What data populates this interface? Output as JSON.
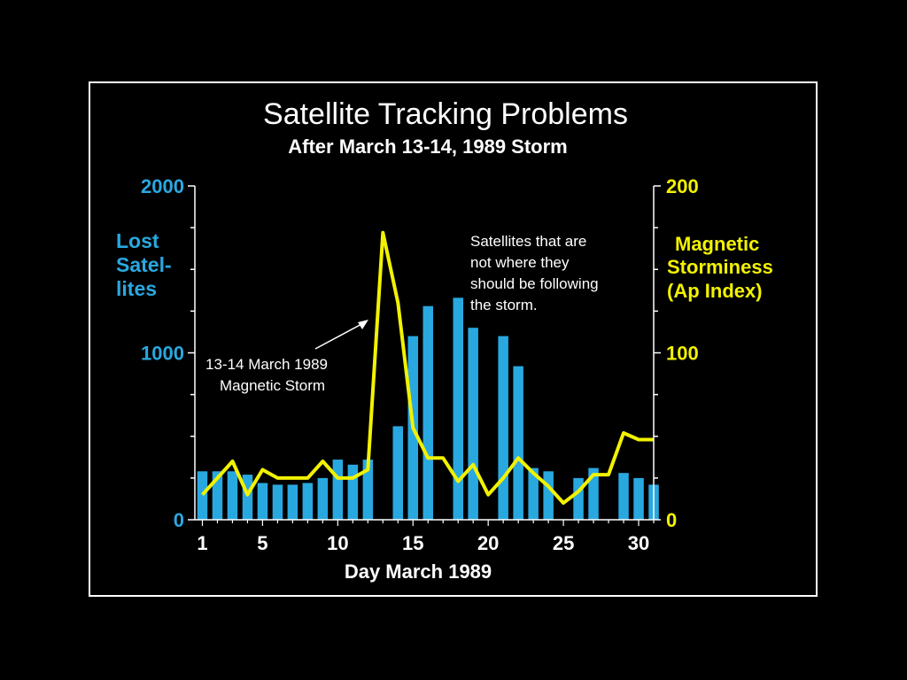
{
  "chart_data": {
    "type": "bar",
    "title": "Satellite Tracking Problems",
    "subtitle": "After March 13-14, 1989 Storm",
    "xlabel": "Day March 1989",
    "ylabel_left": [
      "Lost",
      "Satel-",
      "lites"
    ],
    "ylabel_right": [
      "Magnetic",
      "Storminess",
      "(Ap Index)"
    ],
    "x_ticks": [
      "1",
      "5",
      "10",
      "15",
      "20",
      "25",
      "30"
    ],
    "x_tick_values": [
      1,
      5,
      10,
      15,
      20,
      25,
      30
    ],
    "y_left_ticks": [
      "2000",
      "1000",
      "0"
    ],
    "y_left_tick_values": [
      2000,
      1000,
      0
    ],
    "y_right_ticks": [
      "200",
      "100",
      "0"
    ],
    "y_right_tick_values": [
      200,
      100,
      0
    ],
    "ylim_left": [
      0,
      2000
    ],
    "ylim_right": [
      0,
      200
    ],
    "xlim": [
      0.5,
      31
    ],
    "bar_days": [
      1,
      2,
      3,
      4,
      5,
      6,
      7,
      8,
      9,
      10,
      11,
      12,
      14,
      15,
      16,
      18,
      19,
      21,
      22,
      23,
      24,
      26,
      27,
      29,
      30,
      31
    ],
    "bar_values": [
      290,
      290,
      290,
      270,
      220,
      210,
      210,
      220,
      250,
      360,
      330,
      360,
      560,
      1100,
      1280,
      1330,
      1150,
      1100,
      920,
      310,
      290,
      250,
      310,
      280,
      250,
      210
    ],
    "series": [
      {
        "name": "Lost Satellites",
        "axis": "left",
        "color": "#29a8e0"
      },
      {
        "name": "Magnetic Storminess (Ap Index)",
        "axis": "right",
        "color": "#f2f200"
      }
    ],
    "line_days": [
      1,
      2,
      3,
      4,
      5,
      6,
      7,
      8,
      9,
      10,
      11,
      12,
      13,
      14,
      15,
      16,
      17,
      18,
      19,
      20,
      21,
      22,
      23,
      24,
      25,
      26,
      27,
      28,
      29,
      30,
      31
    ],
    "line_values": [
      15,
      25,
      35,
      15,
      30,
      25,
      25,
      25,
      35,
      25,
      25,
      30,
      172,
      130,
      55,
      37,
      37,
      23,
      33,
      15,
      25,
      37,
      28,
      20,
      10,
      17,
      27,
      27,
      52,
      48,
      48
    ],
    "annotations": [
      {
        "lines": [
          "13-14 March 1989",
          "Magnetic Storm"
        ]
      },
      {
        "lines": [
          "Satellites that are",
          "not where they",
          "should be following",
          "the storm."
        ]
      }
    ]
  }
}
